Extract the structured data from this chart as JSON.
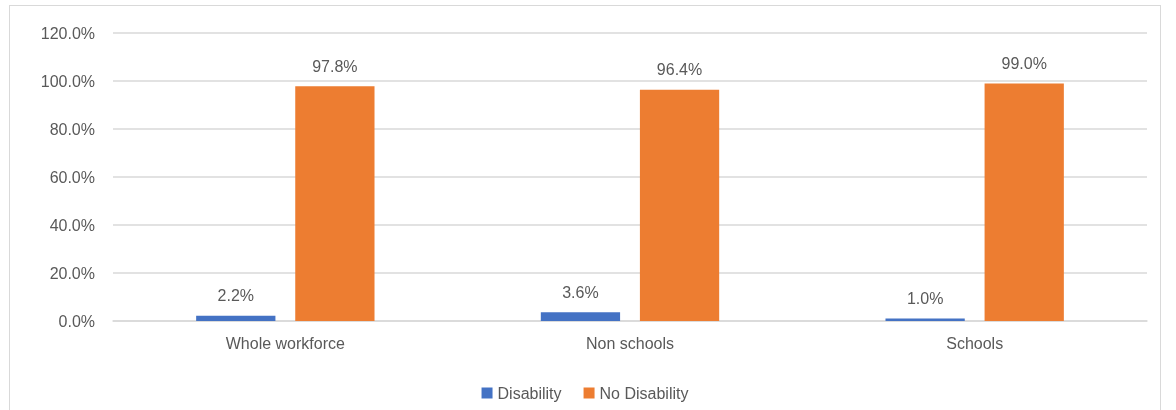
{
  "chart_data": {
    "type": "bar",
    "categories": [
      "Whole workforce",
      "Non schools",
      "Schools"
    ],
    "series": [
      {
        "name": "Disability",
        "color": "#4472c4",
        "values": [
          2.2,
          3.6,
          1.0
        ],
        "value_labels": [
          "2.2%",
          "3.6%",
          "1.0%"
        ]
      },
      {
        "name": "No Disability",
        "color": "#ed7d31",
        "values": [
          97.8,
          96.4,
          99.0
        ],
        "value_labels": [
          "97.8%",
          "96.4%",
          "99.0%"
        ]
      }
    ],
    "ylim": [
      0,
      120
    ],
    "yticks": [
      {
        "value": 0,
        "label": "0.0%"
      },
      {
        "value": 20,
        "label": "20.0%"
      },
      {
        "value": 40,
        "label": "40.0%"
      },
      {
        "value": 60,
        "label": "60.0%"
      },
      {
        "value": 80,
        "label": "80.0%"
      },
      {
        "value": 100,
        "label": "100.0%"
      },
      {
        "value": 120,
        "label": "120.0%"
      }
    ],
    "grid": "y",
    "legend": "bottom"
  }
}
